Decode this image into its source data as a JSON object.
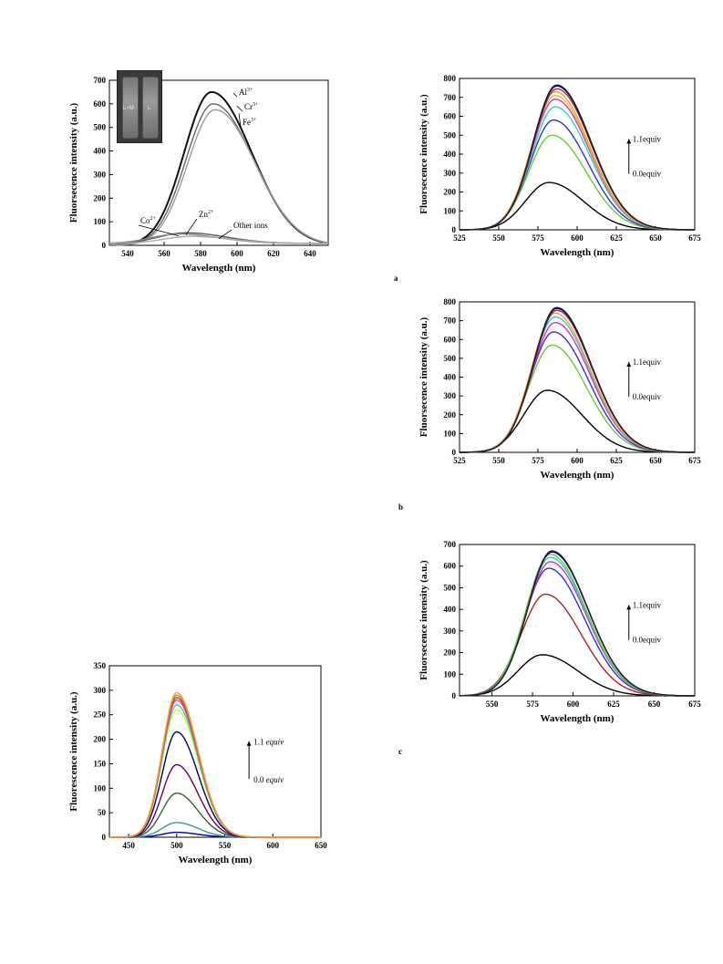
{
  "panels": {
    "p1": {
      "xlabel": "Wavelength (nm)",
      "ylabel": "Fluorsecence intensity (a.u.)",
      "inset": {
        "vial_labels": [
          "L+M",
          "L"
        ]
      }
    },
    "pa": {
      "letter": "a",
      "xlabel": "Wavelength (nm)",
      "ylabel": "Fluorsecence intensity (a.u.)",
      "arrow_top": "1.1equiv",
      "arrow_bottom": "0.0equiv"
    },
    "pb": {
      "letter": "b",
      "xlabel": "Wavelength (nm)",
      "ylabel": "Fluorsecence intensity (a.u.)",
      "arrow_top": "1.1equiv",
      "arrow_bottom": "0.0equiv"
    },
    "pc": {
      "letter": "c",
      "xlabel": "Wavelength (nm)",
      "ylabel": "Fluorsecence intensity (a.u.)",
      "arrow_top": "1.1equiv",
      "arrow_bottom": "0.0equiv"
    },
    "p4": {
      "xlabel": "Wavelength (nm)",
      "ylabel": "Fluorescence intensity (a.u.)",
      "arrow_top_num": "1.1",
      "arrow_bottom_num": "0.0",
      "arrow_unit": "equiv"
    }
  },
  "chart_data": [
    {
      "id": "p1",
      "type": "line",
      "xlabel": "Wavelength (nm)",
      "ylabel": "Fluorsecence intensity (a.u.)",
      "xlim": [
        530,
        650
      ],
      "ylim": [
        0,
        700
      ],
      "xticks": [
        540,
        560,
        580,
        600,
        620,
        640
      ],
      "yticks": [
        0,
        100,
        200,
        300,
        400,
        500,
        600,
        700
      ],
      "grid": false,
      "series": [
        {
          "name": "Al3+",
          "label_base": "Al",
          "label_sup": "3+",
          "peak_x": 586,
          "peak_y": 650,
          "color": "#111111"
        },
        {
          "name": "Cr3+",
          "label_base": "Cr",
          "label_sup": "3+",
          "peak_x": 587,
          "peak_y": 600,
          "color": "#666666"
        },
        {
          "name": "Fe3+",
          "label_base": "Fe",
          "label_sup": "3+",
          "peak_x": 588,
          "peak_y": 575,
          "color": "#999999"
        },
        {
          "name": "Zn2+",
          "label_base": "Zn",
          "label_sup": "2+",
          "peak_x": 572,
          "peak_y": 45,
          "color": "#555555"
        },
        {
          "name": "Co2+",
          "label_base": "Co",
          "label_sup": "2+",
          "peak_x": 568,
          "peak_y": 40,
          "color": "#888888"
        },
        {
          "name": "Other ions",
          "label_base": "Other ions",
          "label_sup": "",
          "peak_x": 575,
          "peak_y": 30,
          "color": "#aaaaaa"
        }
      ]
    },
    {
      "id": "pa",
      "type": "line",
      "xlabel": "Wavelength (nm)",
      "ylabel": "Fluorsecence intensity (a.u.)",
      "xlim": [
        525,
        675
      ],
      "ylim": [
        0,
        800
      ],
      "xticks": [
        525,
        550,
        575,
        600,
        625,
        650,
        675
      ],
      "yticks": [
        0,
        100,
        200,
        300,
        400,
        500,
        600,
        700,
        800
      ],
      "grid": false,
      "series": [
        {
          "peak_x": 582,
          "peak_y": 250,
          "color": "#000000"
        },
        {
          "peak_x": 584,
          "peak_y": 500,
          "color": "#66cc33"
        },
        {
          "peak_x": 585,
          "peak_y": 580,
          "color": "#3333cc"
        },
        {
          "peak_x": 586,
          "peak_y": 650,
          "color": "#33cccc"
        },
        {
          "peak_x": 586,
          "peak_y": 690,
          "color": "#cc33cc"
        },
        {
          "peak_x": 586,
          "peak_y": 710,
          "color": "#cccc33"
        },
        {
          "peak_x": 586,
          "peak_y": 730,
          "color": "#ff9933"
        },
        {
          "peak_x": 587,
          "peak_y": 745,
          "color": "#993333"
        },
        {
          "peak_x": 587,
          "peak_y": 760,
          "color": "#000099"
        },
        {
          "peak_x": 587,
          "peak_y": 765,
          "color": "#222222"
        }
      ]
    },
    {
      "id": "pb",
      "type": "line",
      "xlabel": "Wavelength (nm)",
      "ylabel": "Fluorsecence intensity (a.u.)",
      "xlim": [
        525,
        675
      ],
      "ylim": [
        0,
        800
      ],
      "xticks": [
        525,
        550,
        575,
        600,
        625,
        650,
        675
      ],
      "yticks": [
        0,
        100,
        200,
        300,
        400,
        500,
        600,
        700,
        800
      ],
      "grid": false,
      "series": [
        {
          "peak_x": 581,
          "peak_y": 330,
          "color": "#000000"
        },
        {
          "peak_x": 584,
          "peak_y": 570,
          "color": "#66cc33"
        },
        {
          "peak_x": 585,
          "peak_y": 640,
          "color": "#3333cc"
        },
        {
          "peak_x": 586,
          "peak_y": 690,
          "color": "#cc33cc"
        },
        {
          "peak_x": 586,
          "peak_y": 720,
          "color": "#33cccc"
        },
        {
          "peak_x": 586,
          "peak_y": 740,
          "color": "#ff9933"
        },
        {
          "peak_x": 587,
          "peak_y": 755,
          "color": "#993333"
        },
        {
          "peak_x": 587,
          "peak_y": 765,
          "color": "#000099"
        },
        {
          "peak_x": 587,
          "peak_y": 770,
          "color": "#222222"
        }
      ]
    },
    {
      "id": "pc",
      "type": "line",
      "xlabel": "Wavelength (nm)",
      "ylabel": "Fluorsecence intensity (a.u.)",
      "xlim": [
        530,
        675
      ],
      "ylim": [
        0,
        700
      ],
      "xticks": [
        550,
        575,
        600,
        625,
        650,
        675
      ],
      "yticks": [
        0,
        100,
        200,
        300,
        400,
        500,
        600,
        700
      ],
      "grid": false,
      "series": [
        {
          "peak_x": 581,
          "peak_y": 190,
          "color": "#000000"
        },
        {
          "peak_x": 583,
          "peak_y": 470,
          "color": "#aa2222"
        },
        {
          "peak_x": 585,
          "peak_y": 590,
          "color": "#3333cc"
        },
        {
          "peak_x": 586,
          "peak_y": 620,
          "color": "#cc33cc"
        },
        {
          "peak_x": 586,
          "peak_y": 640,
          "color": "#33cccc"
        },
        {
          "peak_x": 586,
          "peak_y": 655,
          "color": "#66cc33"
        },
        {
          "peak_x": 587,
          "peak_y": 665,
          "color": "#000099"
        },
        {
          "peak_x": 587,
          "peak_y": 670,
          "color": "#222222"
        }
      ]
    },
    {
      "id": "p4",
      "type": "line",
      "xlabel": "Wavelength (nm)",
      "ylabel": "Fluorescence intensity (a.u.)",
      "xlim": [
        430,
        650
      ],
      "ylim": [
        0,
        350
      ],
      "xticks": [
        450,
        500,
        550,
        600,
        650
      ],
      "yticks": [
        0,
        50,
        100,
        150,
        200,
        250,
        300,
        350
      ],
      "grid": false,
      "series": [
        {
          "peak_x": 500,
          "peak_y": 10,
          "color": "#000099"
        },
        {
          "peak_x": 500,
          "peak_y": 30,
          "color": "#339999"
        },
        {
          "peak_x": 500,
          "peak_y": 90,
          "color": "#336633"
        },
        {
          "peak_x": 500,
          "peak_y": 148,
          "color": "#660066"
        },
        {
          "peak_x": 500,
          "peak_y": 215,
          "color": "#000066"
        },
        {
          "peak_x": 500,
          "peak_y": 260,
          "color": "#ccff33"
        },
        {
          "peak_x": 500,
          "peak_y": 270,
          "color": "#33cccc"
        },
        {
          "peak_x": 500,
          "peak_y": 280,
          "color": "#ff33cc"
        },
        {
          "peak_x": 500,
          "peak_y": 285,
          "color": "#cc3333"
        },
        {
          "peak_x": 500,
          "peak_y": 290,
          "color": "#999933"
        },
        {
          "peak_x": 500,
          "peak_y": 295,
          "color": "#ff9933"
        }
      ]
    }
  ]
}
